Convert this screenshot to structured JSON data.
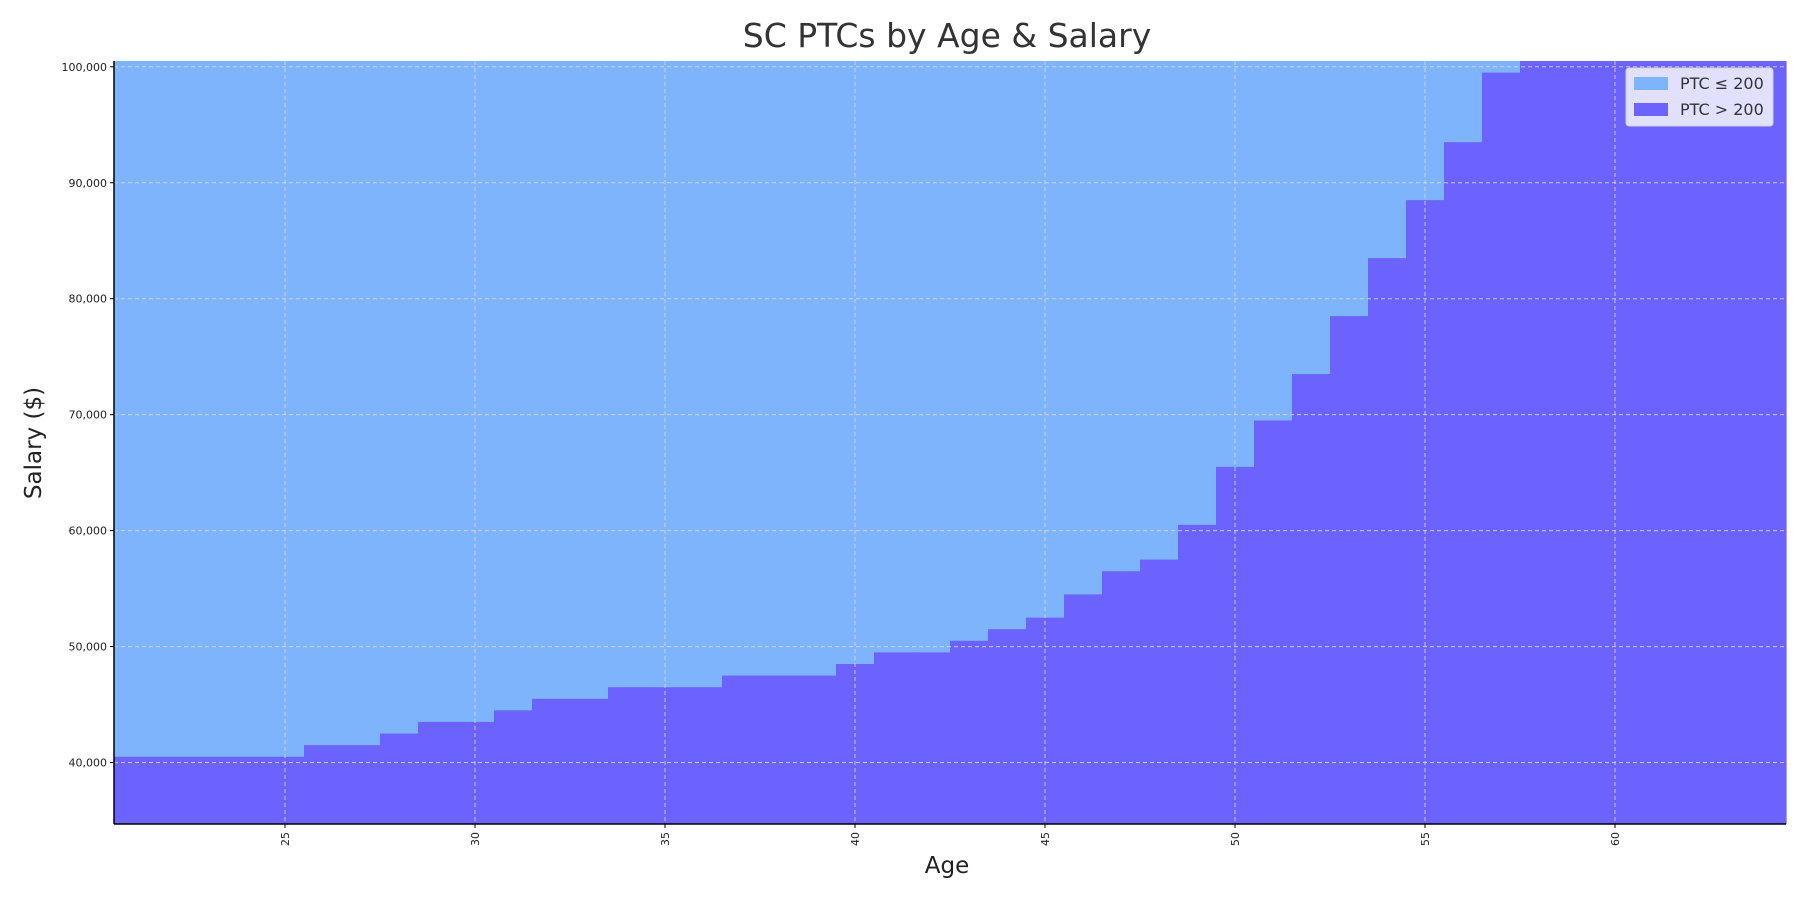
{
  "chart_data": {
    "type": "area",
    "title": "SC PTCs by Age & Salary",
    "xlabel": "Age",
    "ylabel": "Salary ($)",
    "xlim": [
      20.5,
      64.5
    ],
    "ylim": [
      34700,
      100500
    ],
    "x_ticks": [
      25,
      30,
      35,
      40,
      45,
      50,
      55,
      60
    ],
    "y_ticks": [
      40000,
      50000,
      60000,
      70000,
      80000,
      90000,
      100000
    ],
    "y_tick_labels": [
      "40,000",
      "50,000",
      "60,000",
      "70,000",
      "80,000",
      "90,000",
      "100,000"
    ],
    "grid": true,
    "legend_position": "top-right",
    "colors": {
      "ptc_low": "#7EB4FC",
      "ptc_high": "#6C63FF"
    },
    "series": [
      {
        "name": "PTC ≤ 200",
        "color": "#7EB4FC"
      },
      {
        "name": "PTC > 200",
        "color": "#6C63FF"
      }
    ],
    "boundary_note_free": true,
    "ages": [
      21,
      22,
      23,
      24,
      25,
      26,
      27,
      28,
      29,
      30,
      31,
      32,
      33,
      34,
      35,
      36,
      37,
      38,
      39,
      40,
      41,
      42,
      43,
      44,
      45,
      46,
      47,
      48,
      49,
      50,
      51,
      52,
      53,
      54,
      55,
      56,
      57,
      58,
      59,
      60,
      61,
      62,
      63,
      64
    ],
    "threshold_salary": [
      40500,
      40500,
      40500,
      40500,
      40500,
      41500,
      41500,
      42500,
      43500,
      43500,
      44500,
      45500,
      45500,
      46500,
      46500,
      46500,
      47500,
      47500,
      47500,
      48500,
      49500,
      49500,
      50500,
      51500,
      52500,
      54500,
      56500,
      57500,
      60500,
      65500,
      69500,
      73500,
      78500,
      83500,
      88500,
      93500,
      99500,
      100500,
      100500,
      100500,
      100500,
      100500,
      100500,
      100500
    ]
  }
}
